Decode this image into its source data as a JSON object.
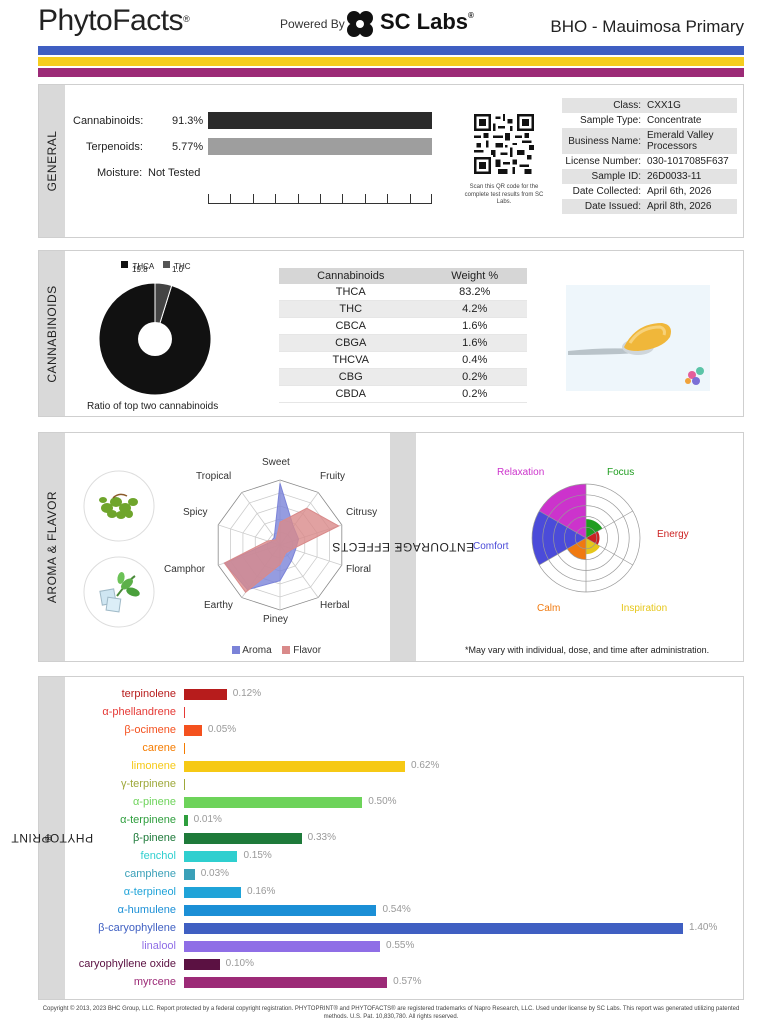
{
  "header": {
    "brand": "PhytoFacts",
    "brand_mark": "®",
    "powered_by": "Powered By",
    "lab": "SC Labs",
    "lab_mark": "®",
    "strain_title": "BHO - Mauimosa Primary"
  },
  "stripes": [
    "#3f5fc2",
    "#f5cd1e",
    "#9c2a77"
  ],
  "general": {
    "label": "GENERAL",
    "rows": [
      {
        "label": "Cannabinoids:",
        "value": "91.3%",
        "fraction": 1.0,
        "color": "#2b2b2b"
      },
      {
        "label": "Terpenoids:",
        "value": "5.77%",
        "fraction": 1.0,
        "color": "#9e9e9e"
      },
      {
        "label": "Moisture:",
        "value": "Not Tested"
      }
    ],
    "qr_caption": "Scan this QR code for the complete test results from SC Labs.",
    "info": [
      {
        "key": "Class:",
        "value": "CXX1G"
      },
      {
        "key": "Sample Type:",
        "value": "Concentrate"
      },
      {
        "key": "Business Name:",
        "value": "Emerald Valley Processors"
      },
      {
        "key": "License Number:",
        "value": "030-1017085F637"
      },
      {
        "key": "Sample ID:",
        "value": "26D0033-11"
      },
      {
        "key": "Date Collected:",
        "value": "April 6th, 2026"
      },
      {
        "key": "Date Issued:",
        "value": "April 8th, 2026"
      }
    ]
  },
  "cannabinoids": {
    "label": "CANNABINOIDS",
    "legend": [
      {
        "name": "THCA",
        "value": "19.8"
      },
      {
        "name": "THC",
        "value": "1.0"
      }
    ],
    "ratio_caption": "Ratio of top two cannabinoids",
    "table_headers": [
      "Cannabinoids",
      "Weight %"
    ],
    "table": [
      {
        "name": "THCA",
        "weight": "83.2%"
      },
      {
        "name": "THC",
        "weight": "4.2%"
      },
      {
        "name": "CBCA",
        "weight": "1.6%"
      },
      {
        "name": "CBGA",
        "weight": "1.6%"
      },
      {
        "name": "THCVA",
        "weight": "0.4%"
      },
      {
        "name": "CBG",
        "weight": "0.2%"
      },
      {
        "name": "CBDA",
        "weight": "0.2%"
      }
    ]
  },
  "aroma": {
    "label": "AROMA & FLAVOR",
    "axes": [
      "Sweet",
      "Fruity",
      "Citrusy",
      "Floral",
      "Herbal",
      "Piney",
      "Earthy",
      "Camphor",
      "Spicy",
      "Tropical"
    ],
    "aroma_legend": "Aroma",
    "flavor_legend": "Flavor",
    "aroma_color": "#7b83d8",
    "flavor_color": "#d98a8a",
    "aroma_values": [
      0.95,
      0.35,
      0.3,
      0.25,
      0.3,
      0.55,
      0.85,
      0.9,
      0.15,
      0.15
    ],
    "flavor_values": [
      0.35,
      0.7,
      0.95,
      0.2,
      0.15,
      0.3,
      0.9,
      0.9,
      0.2,
      0.1
    ]
  },
  "entourage": {
    "label": "ENTOURAGE EFFECTS",
    "label_mark": "*",
    "effects": [
      {
        "name": "Relaxation",
        "color": "#cc33cc",
        "level": 1.0
      },
      {
        "name": "Focus",
        "color": "#1f9d1f",
        "level": 0.35
      },
      {
        "name": "Energy",
        "color": "#cc2222",
        "level": 0.25
      },
      {
        "name": "Inspiration",
        "color": "#e6c619",
        "level": 0.3
      },
      {
        "name": "Calm",
        "color": "#f07a10",
        "level": 0.4
      },
      {
        "name": "Comfort",
        "color": "#4b4bd9",
        "level": 1.0
      }
    ],
    "note": "*May vary with individual, dose, and time after administration."
  },
  "phytoprint": {
    "label": "PHYTOPRINT",
    "label_mark": "®",
    "max": 1.4,
    "terpenes": [
      {
        "name": "terpinolene",
        "value": 0.12,
        "display": "0.12%",
        "color": "#b71c1c"
      },
      {
        "name": "α-phellandrene",
        "value": 0.0,
        "display": "",
        "color": "#e53935"
      },
      {
        "name": "β-ocimene",
        "value": 0.05,
        "display": "0.05%",
        "color": "#f4511e"
      },
      {
        "name": "carene",
        "value": 0.0,
        "display": "",
        "color": "#f57c00"
      },
      {
        "name": "limonene",
        "value": 0.62,
        "display": "0.62%",
        "color": "#f6c915"
      },
      {
        "name": "γ-terpinene",
        "value": 0.0,
        "display": "",
        "color": "#9ea83a"
      },
      {
        "name": "α-pinene",
        "value": 0.5,
        "display": "0.50%",
        "color": "#6dd35a"
      },
      {
        "name": "α-terpinene",
        "value": 0.01,
        "display": "0.01%",
        "color": "#2e9e3d"
      },
      {
        "name": "β-pinene",
        "value": 0.33,
        "display": "0.33%",
        "color": "#1e7a3a"
      },
      {
        "name": "fenchol",
        "value": 0.15,
        "display": "0.15%",
        "color": "#2fcfcf"
      },
      {
        "name": "camphene",
        "value": 0.03,
        "display": "0.03%",
        "color": "#3aa0b8"
      },
      {
        "name": "α-terpineol",
        "value": 0.16,
        "display": "0.16%",
        "color": "#1fa3d8"
      },
      {
        "name": "α-humulene",
        "value": 0.54,
        "display": "0.54%",
        "color": "#1b8fd6"
      },
      {
        "name": "β-caryophyllene",
        "value": 1.4,
        "display": "1.40%",
        "color": "#3f5fc2"
      },
      {
        "name": "linalool",
        "value": 0.55,
        "display": "0.55%",
        "color": "#8f6ee6"
      },
      {
        "name": "caryophyllene oxide",
        "value": 0.1,
        "display": "0.10%",
        "color": "#5b1142"
      },
      {
        "name": "myrcene",
        "value": 0.57,
        "display": "0.57%",
        "color": "#9c2a77"
      }
    ]
  },
  "footer": "Copyright © 2013, 2023 BHC Group, LLC. Report protected by a federal copyright registration. PHYTOPRINT® and PHYTOFACTS® are registered trademarks of Napro Research, LLC. Used under license by SC Labs. This report was generated utilizing patented methods. U.S. Pat. 10,830,780. All rights reserved."
}
